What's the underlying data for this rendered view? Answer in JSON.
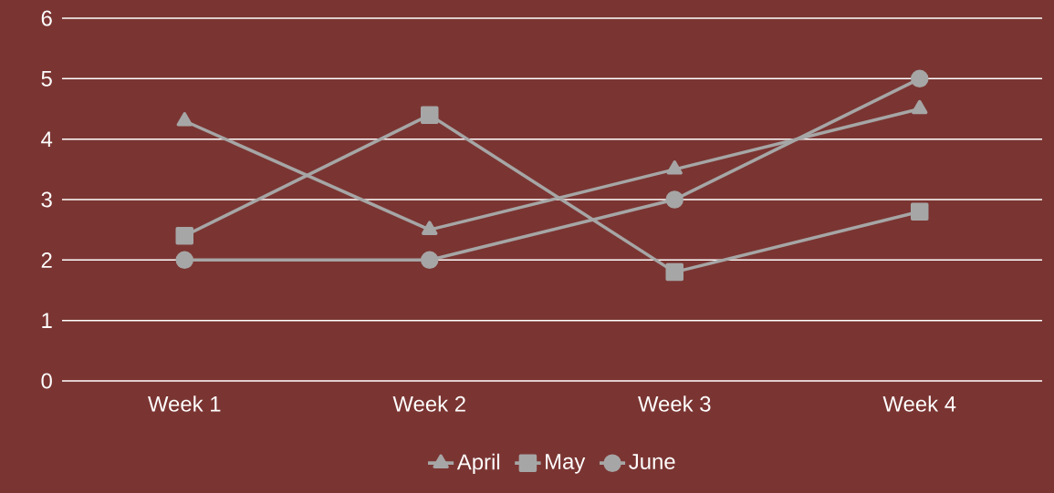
{
  "chart_data": {
    "type": "line",
    "categories": [
      "Week 1",
      "Week 2",
      "Week 3",
      "Week 4"
    ],
    "series": [
      {
        "name": "April",
        "color": "#a6a6a6",
        "marker": "triangle",
        "values": [
          4.3,
          2.5,
          3.5,
          4.5
        ]
      },
      {
        "name": "May",
        "color": "#a6a6a6",
        "marker": "square",
        "values": [
          2.4,
          4.4,
          1.8,
          2.8
        ]
      },
      {
        "name": "June",
        "color": "#a6a6a6",
        "marker": "circle",
        "values": [
          2,
          2,
          3,
          5
        ]
      }
    ],
    "ylim": [
      0,
      6
    ],
    "yticks": [
      0,
      1,
      2,
      3,
      4,
      5,
      6
    ],
    "grid": "y",
    "legend": "bottom",
    "line_style": "solid"
  }
}
